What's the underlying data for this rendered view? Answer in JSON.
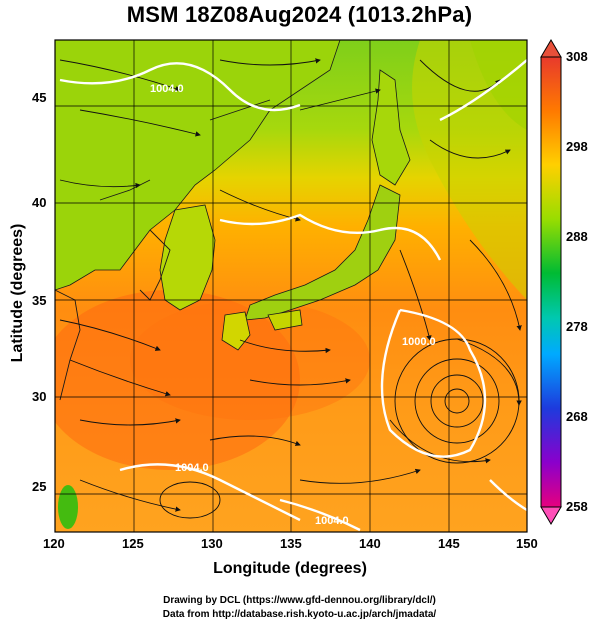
{
  "title": "MSM 18Z08Aug2024 (1013.2hPa)",
  "axes": {
    "xlabel": "Longitude (degrees)",
    "ylabel": "Latitude  (degrees)",
    "xticks": [
      "120",
      "125",
      "130",
      "135",
      "140",
      "145",
      "150"
    ],
    "yticks": [
      "45",
      "40",
      "35",
      "30",
      "25"
    ]
  },
  "colorbar": {
    "ticks": [
      "308",
      "298",
      "288",
      "278",
      "268",
      "258"
    ],
    "colors": [
      "#e7007a",
      "#b300b8",
      "#4b1fd8",
      "#0060ff",
      "#00bfff",
      "#00d8a0",
      "#00c040",
      "#44cc00",
      "#aadd00",
      "#ffee00",
      "#ffb400",
      "#ff7a00",
      "#f04a00",
      "#e03a30"
    ]
  },
  "contour_labels": [
    "1004.0",
    "1000.0",
    "1004.0",
    "1004.0"
  ],
  "credits": {
    "line1": "Drawing by DCL (https://www.gfd-dennou.org/library/dcl/)",
    "line2": "Data from http://database.rish.kyoto-u.ac.jp/arch/jmadata/"
  }
}
